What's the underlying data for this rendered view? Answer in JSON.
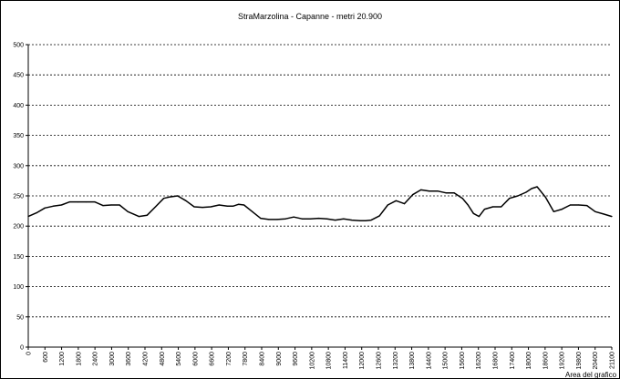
{
  "chart_data": {
    "type": "line",
    "title": "StraMarzolina - Capanne - metri 20.900",
    "xlabel": "",
    "ylabel": "",
    "ylim": [
      0,
      500
    ],
    "y_ticks": [
      0,
      50,
      100,
      150,
      200,
      250,
      300,
      350,
      400,
      450,
      500
    ],
    "xlim": [
      0,
      21100
    ],
    "x_ticks": [
      "0",
      "600",
      "1200",
      "1800",
      "2400",
      "3000",
      "3600",
      "4200",
      "4800",
      "5400",
      "6000",
      "6600",
      "7200",
      "7800",
      "8400",
      "9000",
      "9600",
      "10200",
      "10800",
      "11400",
      "12000",
      "12600",
      "13200",
      "13800",
      "14400",
      "15000",
      "15600",
      "16200",
      "16800",
      "17400",
      "18000",
      "18600",
      "19200",
      "19800",
      "20400",
      "21100"
    ],
    "grid": "horizontal dashed",
    "legend": "none",
    "line_color": "#000000",
    "series": [
      {
        "x": [
          0,
          300,
          600,
          900,
          1200,
          1500,
          1800,
          2100,
          2400,
          2700,
          3000,
          3300,
          3600,
          3800,
          4000,
          4300,
          4600,
          4900,
          5100,
          5400,
          5700,
          6000,
          6300,
          6600,
          6900,
          7200,
          7400,
          7600,
          7800,
          8100,
          8400,
          8700,
          9000,
          9300,
          9600,
          9900,
          10200,
          10500,
          10800,
          11100,
          11400,
          11700,
          12000,
          12200,
          12400,
          12700,
          13000,
          13300,
          13600,
          13900,
          14200,
          14500,
          14800,
          15100,
          15400,
          15700,
          15900,
          16100,
          16300,
          16500,
          16800,
          17100,
          17400,
          17700,
          18000,
          18200,
          18400,
          18700,
          19000,
          19300,
          19600,
          19900,
          20200,
          20500,
          20800,
          21100
        ],
        "values": [
          216,
          222,
          230,
          233,
          235,
          240,
          240,
          240,
          240,
          234,
          235,
          235,
          224,
          220,
          216,
          218,
          232,
          246,
          248,
          250,
          242,
          232,
          231,
          232,
          235,
          233,
          233,
          236,
          235,
          224,
          213,
          211,
          211,
          212,
          215,
          212,
          212,
          213,
          212,
          210,
          212,
          210,
          209,
          209,
          210,
          217,
          235,
          242,
          237,
          252,
          260,
          258,
          258,
          255,
          255,
          246,
          235,
          221,
          216,
          228,
          232,
          232,
          246,
          250,
          256,
          262,
          265,
          248,
          224,
          228,
          235,
          235,
          234,
          224,
          220,
          216
        ]
      }
    ],
    "annotation": "Area del grafico"
  }
}
